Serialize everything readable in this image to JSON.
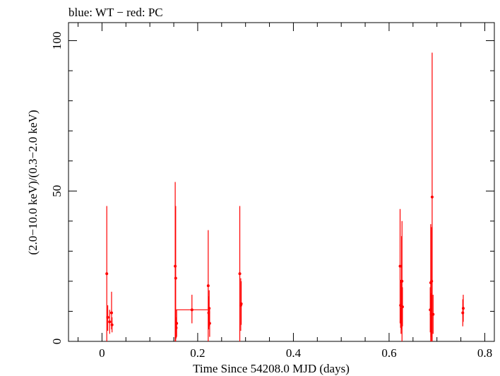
{
  "chart_data": {
    "type": "scatter",
    "title": "blue: WT − red: PC",
    "xlabel": "Time Since 54208.0 MJD (days)",
    "ylabel": "(2.0−10.0 keV)/(0.3−2.0 keV)",
    "xlim": [
      -0.07,
      0.82
    ],
    "ylim": [
      0,
      106
    ],
    "x_ticks": [
      0,
      0.2,
      0.4,
      0.6,
      0.8
    ],
    "x_tick_labels": [
      "0",
      "0.2",
      "0.4",
      "0.6",
      "0.8"
    ],
    "y_ticks": [
      0,
      50,
      100
    ],
    "y_tick_labels": [
      "0",
      "50",
      "100"
    ],
    "grid": false,
    "series": [
      {
        "name": "PC",
        "color": "#ff0000",
        "points": [
          {
            "x": 0.01,
            "y": 22.5,
            "xerr": 0.001,
            "ylo": 0.0,
            "yhi": 45.0
          },
          {
            "x": 0.012,
            "y": 8.0,
            "xerr": 0.001,
            "ylo": 3.5,
            "yhi": 12.0
          },
          {
            "x": 0.016,
            "y": 6.5,
            "xerr": 0.001,
            "ylo": 2.5,
            "yhi": 10.5
          },
          {
            "x": 0.02,
            "y": 9.5,
            "xerr": 0.001,
            "ylo": 4.0,
            "yhi": 16.5
          },
          {
            "x": 0.021,
            "y": 5.5,
            "xerr": 0.001,
            "ylo": 3.0,
            "yhi": 8.0
          },
          {
            "x": 0.153,
            "y": 25.0,
            "xerr": 0.001,
            "ylo": 0.0,
            "yhi": 53.0
          },
          {
            "x": 0.154,
            "y": 21.0,
            "xerr": 0.001,
            "ylo": 0.0,
            "yhi": 45.0
          },
          {
            "x": 0.155,
            "y": 4.5,
            "xerr": 0.001,
            "ylo": 1.0,
            "yhi": 8.0
          },
          {
            "x": 0.156,
            "y": 6.0,
            "xerr": 0.001,
            "ylo": 1.5,
            "yhi": 10.5
          },
          {
            "x": 0.188,
            "y": 10.5,
            "xerr": 0.033,
            "ylo": 6.0,
            "yhi": 15.5
          },
          {
            "x": 0.222,
            "y": 18.5,
            "xerr": 0.001,
            "ylo": 0.0,
            "yhi": 37.0
          },
          {
            "x": 0.223,
            "y": 9.5,
            "xerr": 0.001,
            "ylo": 4.0,
            "yhi": 15.0
          },
          {
            "x": 0.224,
            "y": 11.0,
            "xerr": 0.001,
            "ylo": 5.0,
            "yhi": 17.0
          },
          {
            "x": 0.225,
            "y": 6.0,
            "xerr": 0.001,
            "ylo": 1.5,
            "yhi": 10.5
          },
          {
            "x": 0.288,
            "y": 22.5,
            "xerr": 0.001,
            "ylo": 0.0,
            "yhi": 45.0
          },
          {
            "x": 0.29,
            "y": 12.0,
            "xerr": 0.001,
            "ylo": 3.5,
            "yhi": 21.0
          },
          {
            "x": 0.291,
            "y": 12.5,
            "xerr": 0.001,
            "ylo": 5.5,
            "yhi": 20.0
          },
          {
            "x": 0.623,
            "y": 25.0,
            "xerr": 0.001,
            "ylo": 6.0,
            "yhi": 44.0
          },
          {
            "x": 0.624,
            "y": 12.0,
            "xerr": 0.001,
            "ylo": 4.5,
            "yhi": 20.0
          },
          {
            "x": 0.625,
            "y": 6.5,
            "xerr": 0.001,
            "ylo": 2.5,
            "yhi": 11.0
          },
          {
            "x": 0.626,
            "y": 20.0,
            "xerr": 0.001,
            "ylo": 4.0,
            "yhi": 35.0
          },
          {
            "x": 0.627,
            "y": 20.0,
            "xerr": 0.001,
            "ylo": 0.0,
            "yhi": 40.0
          },
          {
            "x": 0.628,
            "y": 11.5,
            "xerr": 0.001,
            "ylo": 5.0,
            "yhi": 18.0
          },
          {
            "x": 0.686,
            "y": 10.5,
            "xerr": 0.001,
            "ylo": 3.0,
            "yhi": 18.0
          },
          {
            "x": 0.687,
            "y": 19.5,
            "xerr": 0.001,
            "ylo": 0.0,
            "yhi": 39.0
          },
          {
            "x": 0.688,
            "y": 9.0,
            "xerr": 0.001,
            "ylo": 1.5,
            "yhi": 16.0
          },
          {
            "x": 0.689,
            "y": 20.0,
            "xerr": 0.001,
            "ylo": 0.0,
            "yhi": 38.0
          },
          {
            "x": 0.69,
            "y": 48.0,
            "xerr": 0.001,
            "ylo": 0.0,
            "yhi": 96.0
          },
          {
            "x": 0.692,
            "y": 9.0,
            "xerr": 0.001,
            "ylo": 2.5,
            "yhi": 15.5
          },
          {
            "x": 0.754,
            "y": 9.5,
            "xerr": 0.001,
            "ylo": 5.0,
            "yhi": 14.0
          },
          {
            "x": 0.755,
            "y": 11.0,
            "xerr": 0.001,
            "ylo": 6.5,
            "yhi": 15.5
          }
        ]
      }
    ]
  }
}
